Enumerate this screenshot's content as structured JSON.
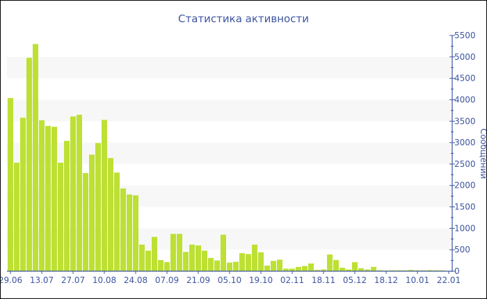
{
  "chart_data": {
    "type": "bar",
    "title": "Статистика активности",
    "xlabel": "",
    "ylabel": "Сообщений",
    "ylim": [
      0,
      5500
    ],
    "yticks": [
      0,
      500,
      1000,
      1500,
      2000,
      2500,
      3000,
      3500,
      4000,
      4500,
      5000,
      5500
    ],
    "y_axis_position": "right",
    "grid": "alternating horizontal bands every 500",
    "xtick_labels": [
      "29.06",
      "13.07",
      "27.07",
      "10.08",
      "24.08",
      "07.09",
      "21.09",
      "05.10",
      "19.10",
      "02.11",
      "18.11",
      "05.12",
      "18.12",
      "10.01",
      "22.01"
    ],
    "values": [
      4040,
      2530,
      3580,
      4980,
      5300,
      3520,
      3390,
      3370,
      2530,
      3040,
      3610,
      3650,
      2290,
      2720,
      2990,
      3530,
      2640,
      2300,
      1930,
      1790,
      1770,
      620,
      480,
      800,
      260,
      210,
      870,
      870,
      450,
      620,
      600,
      480,
      310,
      250,
      850,
      200,
      220,
      420,
      400,
      620,
      440,
      130,
      240,
      270,
      60,
      60,
      100,
      120,
      180,
      30,
      40,
      390,
      260,
      80,
      40,
      210,
      70,
      40,
      100,
      20,
      15,
      20,
      20,
      20,
      30,
      20,
      20,
      25,
      20,
      20
    ],
    "colors": {
      "bar": "#bde034",
      "axis": "#3e55a0",
      "band": "#f7f7f7"
    }
  }
}
